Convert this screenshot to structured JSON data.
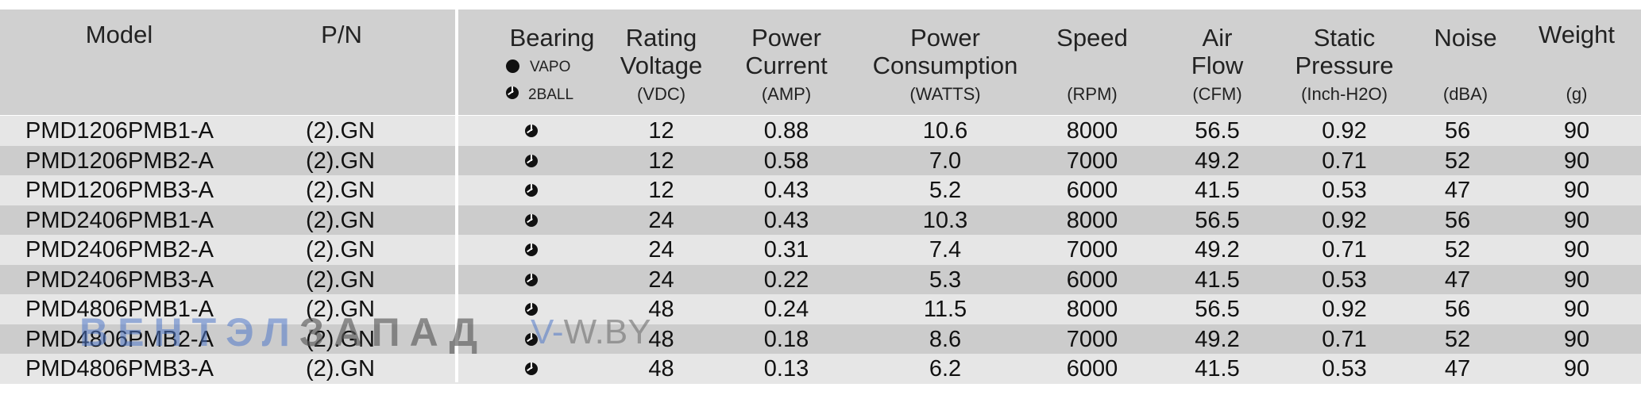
{
  "headers": {
    "model": "Model",
    "pn": "P/N",
    "bearing": "Bearing",
    "bearing_legend": {
      "vapo": "VAPO",
      "ball": "2BALL"
    },
    "voltage": [
      "Rating",
      "Voltage"
    ],
    "voltage_unit": "(VDC)",
    "current": [
      "Power",
      "Current"
    ],
    "current_unit": "(AMP)",
    "consumption": [
      "Power",
      "Consumption"
    ],
    "consumption_unit": "(WATTS)",
    "speed": "Speed",
    "speed_unit": "(RPM)",
    "airflow": [
      "Air",
      "Flow"
    ],
    "airflow_unit": "(CFM)",
    "pressure": [
      "Static",
      "Pressure"
    ],
    "pressure_unit": "(Inch-H2O)",
    "noise": "Noise",
    "noise_unit": "(dBA)",
    "weight": "Weight",
    "weight_unit": "(g)"
  },
  "rows": [
    {
      "model": "PMD1206PMB1-A",
      "pn": "(2).GN",
      "bearing": "2ball-icon",
      "voltage": "12",
      "current": "0.88",
      "consumption": "10.6",
      "speed": "8000",
      "airflow": "56.5",
      "pressure": "0.92",
      "noise": "56",
      "weight": "90"
    },
    {
      "model": "PMD1206PMB2-A",
      "pn": "(2).GN",
      "bearing": "2ball-icon",
      "voltage": "12",
      "current": "0.58",
      "consumption": "7.0",
      "speed": "7000",
      "airflow": "49.2",
      "pressure": "0.71",
      "noise": "52",
      "weight": "90"
    },
    {
      "model": "PMD1206PMB3-A",
      "pn": "(2).GN",
      "bearing": "2ball-icon",
      "voltage": "12",
      "current": "0.43",
      "consumption": "5.2",
      "speed": "6000",
      "airflow": "41.5",
      "pressure": "0.53",
      "noise": "47",
      "weight": "90"
    },
    {
      "model": "PMD2406PMB1-A",
      "pn": "(2).GN",
      "bearing": "2ball-icon",
      "voltage": "24",
      "current": "0.43",
      "consumption": "10.3",
      "speed": "8000",
      "airflow": "56.5",
      "pressure": "0.92",
      "noise": "56",
      "weight": "90"
    },
    {
      "model": "PMD2406PMB2-A",
      "pn": "(2).GN",
      "bearing": "2ball-icon",
      "voltage": "24",
      "current": "0.31",
      "consumption": "7.4",
      "speed": "7000",
      "airflow": "49.2",
      "pressure": "0.71",
      "noise": "52",
      "weight": "90"
    },
    {
      "model": "PMD2406PMB3-A",
      "pn": "(2).GN",
      "bearing": "2ball-icon",
      "voltage": "24",
      "current": "0.22",
      "consumption": "5.3",
      "speed": "6000",
      "airflow": "41.5",
      "pressure": "0.53",
      "noise": "47",
      "weight": "90"
    },
    {
      "model": "PMD4806PMB1-A",
      "pn": "(2).GN",
      "bearing": "2ball-icon",
      "voltage": "48",
      "current": "0.24",
      "consumption": "11.5",
      "speed": "8000",
      "airflow": "56.5",
      "pressure": "0.92",
      "noise": "56",
      "weight": "90"
    },
    {
      "model": "PMD4806PMB2-A",
      "pn": "(2).GN",
      "bearing": "2ball-icon",
      "voltage": "48",
      "current": "0.18",
      "consumption": "8.6",
      "speed": "7000",
      "airflow": "49.2",
      "pressure": "0.71",
      "noise": "52",
      "weight": "90"
    },
    {
      "model": "PMD4806PMB3-A",
      "pn": "(2).GN",
      "bearing": "2ball-icon",
      "voltage": "48",
      "current": "0.13",
      "consumption": "6.2",
      "speed": "6000",
      "airflow": "41.5",
      "pressure": "0.53",
      "noise": "47",
      "weight": "90"
    }
  ],
  "watermark": {
    "part1": "ВЕНТЭЛ",
    "part2": "ЗАПАД",
    "site1": "V-",
    "site2": "W.BY"
  },
  "colors": {
    "header_bg": "#d0d0d0",
    "row_light": "#e6e6e6",
    "row_dark": "#cccccc"
  }
}
